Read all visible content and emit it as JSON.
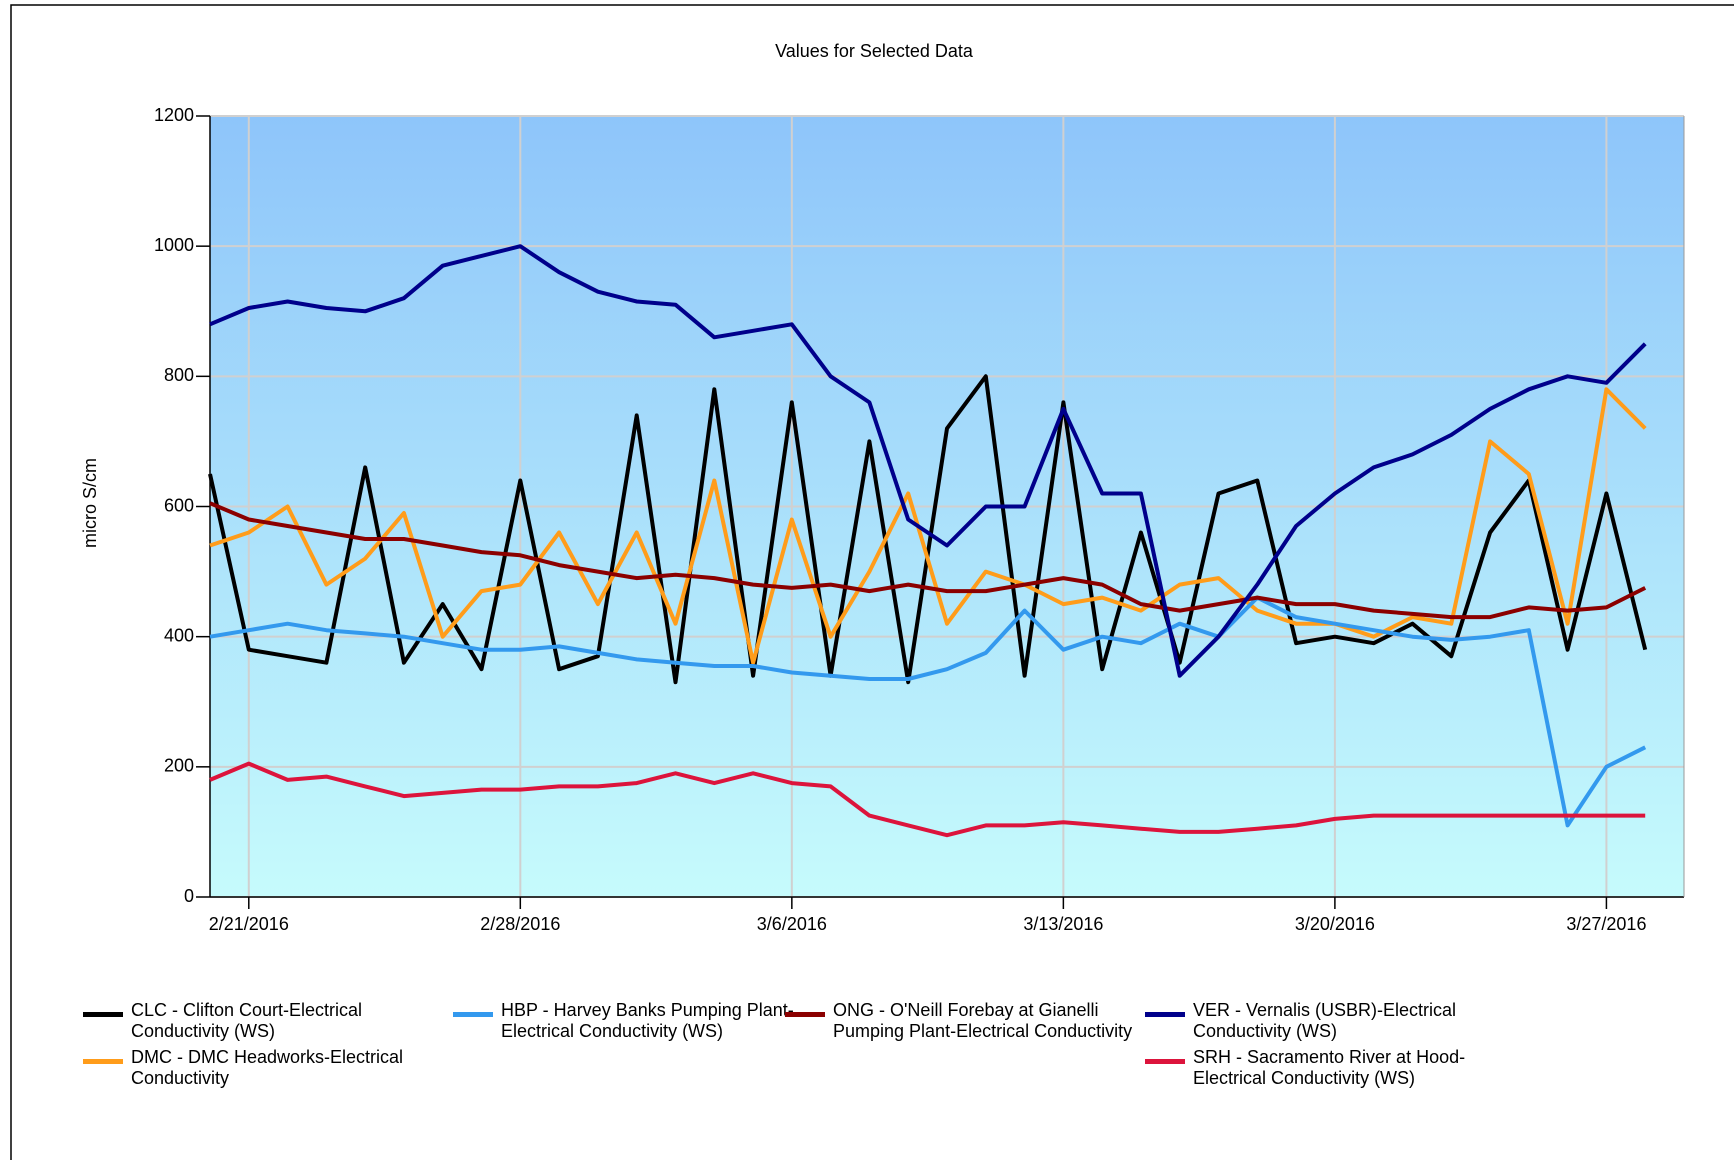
{
  "chart_data": {
    "type": "line",
    "title": "Values for Selected Data",
    "ylabel": "micro S/cm",
    "x": [
      "2016-02-20",
      "2016-02-21",
      "2016-02-22",
      "2016-02-23",
      "2016-02-24",
      "2016-02-25",
      "2016-02-26",
      "2016-02-27",
      "2016-02-28",
      "2016-02-29",
      "2016-03-01",
      "2016-03-02",
      "2016-03-03",
      "2016-03-04",
      "2016-03-05",
      "2016-03-06",
      "2016-03-07",
      "2016-03-08",
      "2016-03-09",
      "2016-03-10",
      "2016-03-11",
      "2016-03-12",
      "2016-03-13",
      "2016-03-14",
      "2016-03-15",
      "2016-03-16",
      "2016-03-17",
      "2016-03-18",
      "2016-03-19",
      "2016-03-20",
      "2016-03-21",
      "2016-03-22",
      "2016-03-23",
      "2016-03-24",
      "2016-03-25",
      "2016-03-26",
      "2016-03-27",
      "2016-03-28"
    ],
    "xlim": [
      "2016-02-20",
      "2016-03-29"
    ],
    "xticks": [
      {
        "value": "2016-02-21",
        "label": "2/21/2016"
      },
      {
        "value": "2016-02-28",
        "label": "2/28/2016"
      },
      {
        "value": "2016-03-06",
        "label": "3/6/2016"
      },
      {
        "value": "2016-03-13",
        "label": "3/13/2016"
      },
      {
        "value": "2016-03-20",
        "label": "3/20/2016"
      },
      {
        "value": "2016-03-27",
        "label": "3/27/2016"
      }
    ],
    "ylim": [
      0,
      1200
    ],
    "yticks": [
      0,
      200,
      400,
      600,
      800,
      1000,
      1200
    ],
    "grid": true,
    "series": [
      {
        "name": "CLC - Clifton Court-Electrical Conductivity (WS)",
        "color": "#000000",
        "values": [
          650,
          380,
          370,
          360,
          660,
          360,
          450,
          350,
          640,
          350,
          370,
          740,
          330,
          780,
          340,
          760,
          340,
          700,
          330,
          720,
          800,
          340,
          760,
          350,
          560,
          360,
          620,
          640,
          390,
          400,
          390,
          420,
          370,
          560,
          640,
          380,
          620,
          380
        ]
      },
      {
        "name": "DMC - DMC Headworks-Electrical Conductivity",
        "color": "#ff9c1a",
        "values": [
          540,
          560,
          600,
          480,
          520,
          590,
          400,
          470,
          480,
          560,
          450,
          560,
          420,
          640,
          360,
          580,
          400,
          500,
          620,
          420,
          500,
          480,
          450,
          460,
          440,
          480,
          490,
          440,
          420,
          420,
          400,
          430,
          420,
          700,
          650,
          420,
          780,
          720
        ]
      },
      {
        "name": "HBP - Harvey Banks Pumping Plant-Electrical Conductivity (WS)",
        "color": "#3399ee",
        "values": [
          400,
          410,
          420,
          410,
          405,
          400,
          390,
          380,
          380,
          385,
          375,
          365,
          360,
          355,
          355,
          345,
          340,
          335,
          335,
          350,
          375,
          440,
          380,
          400,
          390,
          420,
          400,
          460,
          430,
          420,
          410,
          400,
          395,
          400,
          410,
          110,
          200,
          230
        ]
      },
      {
        "name": "ONG - O'Neill Forebay at Gianelli Pumping Plant-Electrical Conductivity",
        "color": "#8b0000",
        "values": [
          605,
          580,
          570,
          560,
          550,
          550,
          540,
          530,
          525,
          510,
          500,
          490,
          495,
          490,
          480,
          475,
          480,
          470,
          480,
          470,
          470,
          480,
          490,
          480,
          450,
          440,
          450,
          460,
          450,
          450,
          440,
          435,
          430,
          430,
          445,
          440,
          445,
          475
        ]
      },
      {
        "name": "VER - Vernalis (USBR)-Electrical Conductivity (WS)",
        "color": "#00008b",
        "values": [
          880,
          905,
          915,
          905,
          900,
          920,
          970,
          985,
          1000,
          960,
          930,
          915,
          910,
          860,
          870,
          880,
          800,
          760,
          580,
          540,
          600,
          600,
          750,
          620,
          620,
          340,
          400,
          480,
          570,
          620,
          660,
          680,
          710,
          750,
          780,
          800,
          790,
          850
        ]
      },
      {
        "name": "SRH - Sacramento River at Hood-Electrical Conductivity (WS)",
        "color": "#dc143c",
        "values": [
          180,
          205,
          180,
          185,
          170,
          155,
          160,
          165,
          165,
          170,
          170,
          175,
          190,
          175,
          190,
          175,
          170,
          125,
          110,
          95,
          110,
          110,
          115,
          110,
          105,
          100,
          100,
          105,
          110,
          120,
          125,
          125,
          125,
          125,
          125,
          125,
          125,
          125
        ]
      }
    ]
  }
}
